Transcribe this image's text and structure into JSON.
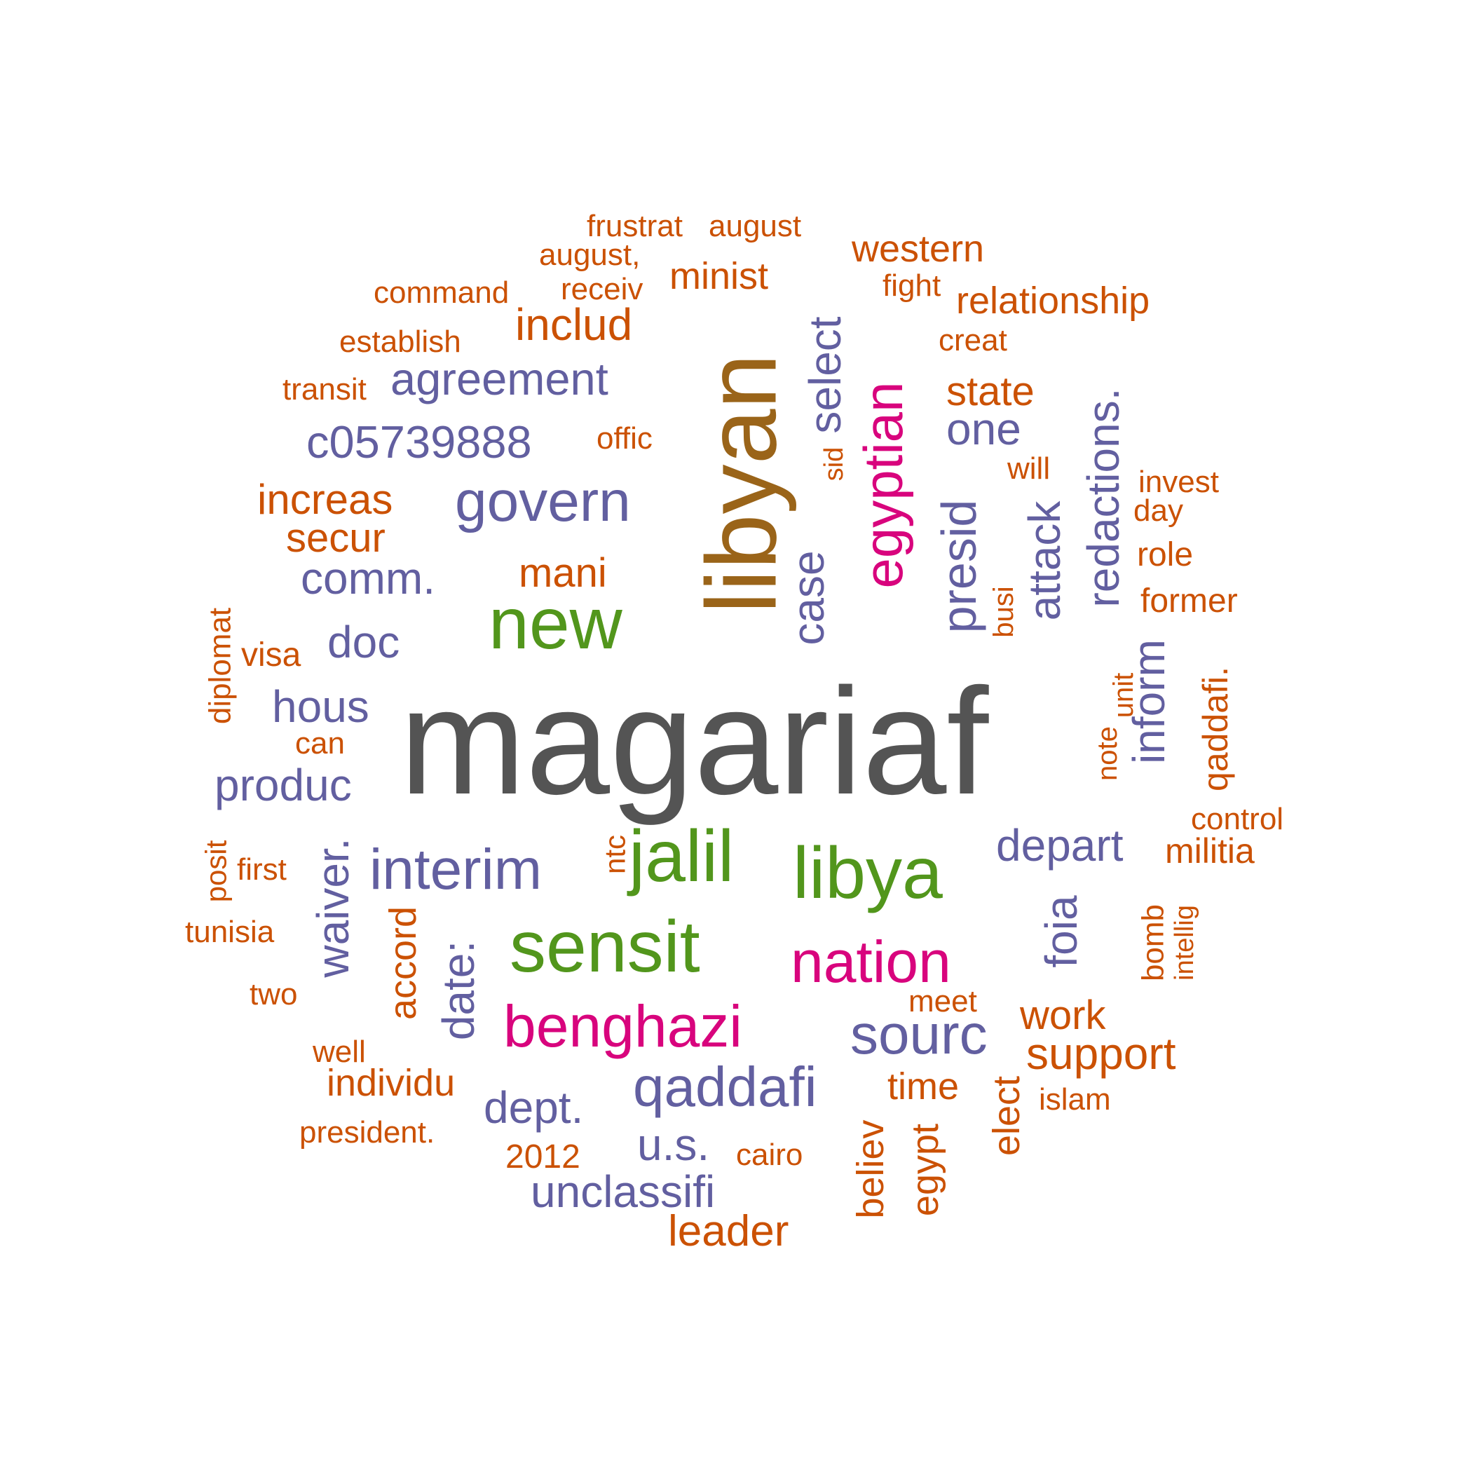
{
  "colors": {
    "gray": "#545454",
    "brown": "#9a6419",
    "green": "#52961c",
    "magenta": "#d8047d",
    "purple": "#625fa0",
    "orange": "#cb5103"
  },
  "words": [
    {
      "text": "magariaf",
      "color": "gray"
    },
    {
      "text": "libyan",
      "color": "brown"
    },
    {
      "text": "new",
      "color": "green"
    },
    {
      "text": "jalil",
      "color": "green"
    },
    {
      "text": "libya",
      "color": "green"
    },
    {
      "text": "sensit",
      "color": "green"
    },
    {
      "text": "egyptian",
      "color": "magenta"
    },
    {
      "text": "nation",
      "color": "magenta"
    },
    {
      "text": "benghazi",
      "color": "magenta"
    },
    {
      "text": "agreement",
      "color": "purple"
    },
    {
      "text": "c05739888",
      "color": "purple"
    },
    {
      "text": "govern",
      "color": "purple"
    },
    {
      "text": "comm.",
      "color": "purple"
    },
    {
      "text": "doc",
      "color": "purple"
    },
    {
      "text": "hous",
      "color": "purple"
    },
    {
      "text": "produc",
      "color": "purple"
    },
    {
      "text": "interim",
      "color": "purple"
    },
    {
      "text": "waiver.",
      "color": "purple"
    },
    {
      "text": "date:",
      "color": "purple"
    },
    {
      "text": "qaddafi",
      "color": "purple"
    },
    {
      "text": "dept.",
      "color": "purple"
    },
    {
      "text": "u.s.",
      "color": "purple"
    },
    {
      "text": "unclassifi",
      "color": "purple"
    },
    {
      "text": "sourc",
      "color": "purple"
    },
    {
      "text": "depart",
      "color": "purple"
    },
    {
      "text": "foia",
      "color": "purple"
    },
    {
      "text": "select",
      "color": "purple"
    },
    {
      "text": "case",
      "color": "purple"
    },
    {
      "text": "presid",
      "color": "purple"
    },
    {
      "text": "one",
      "color": "purple"
    },
    {
      "text": "attack",
      "color": "purple"
    },
    {
      "text": "redactions.",
      "color": "purple"
    },
    {
      "text": "inform",
      "color": "purple"
    },
    {
      "text": "frustrat",
      "color": "orange"
    },
    {
      "text": "august",
      "color": "orange"
    },
    {
      "text": "august,",
      "color": "orange"
    },
    {
      "text": "western",
      "color": "orange"
    },
    {
      "text": "command",
      "color": "orange"
    },
    {
      "text": "receiv",
      "color": "orange"
    },
    {
      "text": "minist",
      "color": "orange"
    },
    {
      "text": "fight",
      "color": "orange"
    },
    {
      "text": "relationship",
      "color": "orange"
    },
    {
      "text": "establish",
      "color": "orange"
    },
    {
      "text": "includ",
      "color": "orange"
    },
    {
      "text": "creat",
      "color": "orange"
    },
    {
      "text": "transit",
      "color": "orange"
    },
    {
      "text": "state",
      "color": "orange"
    },
    {
      "text": "offic",
      "color": "orange"
    },
    {
      "text": "sid",
      "color": "orange"
    },
    {
      "text": "will",
      "color": "orange"
    },
    {
      "text": "invest",
      "color": "orange"
    },
    {
      "text": "day",
      "color": "orange"
    },
    {
      "text": "increas",
      "color": "orange"
    },
    {
      "text": "secur",
      "color": "orange"
    },
    {
      "text": "mani",
      "color": "orange"
    },
    {
      "text": "role",
      "color": "orange"
    },
    {
      "text": "former",
      "color": "orange"
    },
    {
      "text": "busi",
      "color": "orange"
    },
    {
      "text": "diplomat",
      "color": "orange"
    },
    {
      "text": "visa",
      "color": "orange"
    },
    {
      "text": "qaddafi.",
      "color": "orange"
    },
    {
      "text": "unit",
      "color": "orange"
    },
    {
      "text": "note",
      "color": "orange"
    },
    {
      "text": "can",
      "color": "orange"
    },
    {
      "text": "control",
      "color": "orange"
    },
    {
      "text": "militia",
      "color": "orange"
    },
    {
      "text": "ntc",
      "color": "orange"
    },
    {
      "text": "posit",
      "color": "orange"
    },
    {
      "text": "first",
      "color": "orange"
    },
    {
      "text": "tunisia",
      "color": "orange"
    },
    {
      "text": "accord",
      "color": "orange"
    },
    {
      "text": "bomb",
      "color": "orange"
    },
    {
      "text": "intellig",
      "color": "orange"
    },
    {
      "text": "two",
      "color": "orange"
    },
    {
      "text": "meet",
      "color": "orange"
    },
    {
      "text": "work",
      "color": "orange"
    },
    {
      "text": "well",
      "color": "orange"
    },
    {
      "text": "support",
      "color": "orange"
    },
    {
      "text": "individu",
      "color": "orange"
    },
    {
      "text": "time",
      "color": "orange"
    },
    {
      "text": "islam",
      "color": "orange"
    },
    {
      "text": "elect",
      "color": "orange"
    },
    {
      "text": "president.",
      "color": "orange"
    },
    {
      "text": "2012",
      "color": "orange"
    },
    {
      "text": "cairo",
      "color": "orange"
    },
    {
      "text": "believ",
      "color": "orange"
    },
    {
      "text": "egypt",
      "color": "orange"
    },
    {
      "text": "leader",
      "color": "orange"
    }
  ]
}
